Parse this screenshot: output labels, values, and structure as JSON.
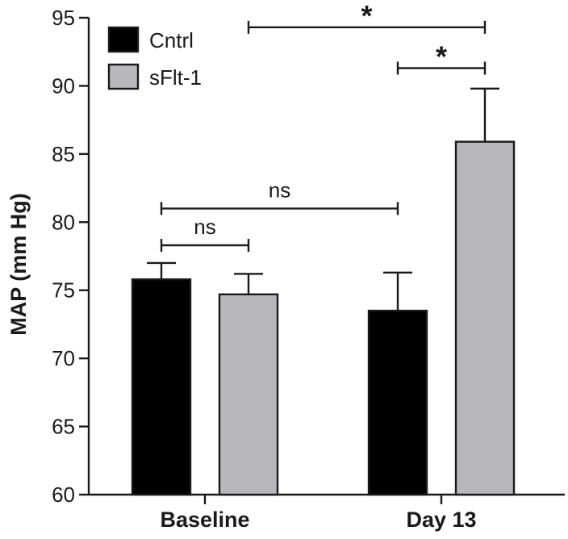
{
  "chart_data": {
    "type": "bar",
    "categories": [
      "Baseline",
      "Day 13"
    ],
    "series": [
      {
        "name": "Cntrl",
        "color": "#000000",
        "values": [
          75.8,
          73.5
        ],
        "errors": [
          1.2,
          2.8
        ]
      },
      {
        "name": "sFlt-1",
        "color": "#b8b8bc",
        "values": [
          74.7,
          85.9
        ],
        "errors": [
          1.5,
          3.9
        ]
      }
    ],
    "ylabel": "MAP (mm Hg)",
    "xlabel": "",
    "ylim": [
      60,
      95
    ],
    "yticks": [
      60,
      65,
      70,
      75,
      80,
      85,
      90,
      95
    ],
    "grid": false,
    "legend": {
      "position": "top-left"
    },
    "annotations": [
      {
        "label": "ns",
        "from": {
          "category": 0,
          "series": 0
        },
        "to": {
          "category": 0,
          "series": 1
        },
        "y": 78.3
      },
      {
        "label": "ns",
        "from": {
          "category": 0,
          "series": 0
        },
        "to": {
          "category": 1,
          "series": 0
        },
        "y": 81.0
      },
      {
        "label": "*",
        "from": {
          "category": 1,
          "series": 0
        },
        "to": {
          "category": 1,
          "series": 1
        },
        "y": 91.3
      },
      {
        "label": "*",
        "from": {
          "category": 0,
          "series": 1
        },
        "to": {
          "category": 1,
          "series": 1
        },
        "y": 94.3
      }
    ]
  }
}
